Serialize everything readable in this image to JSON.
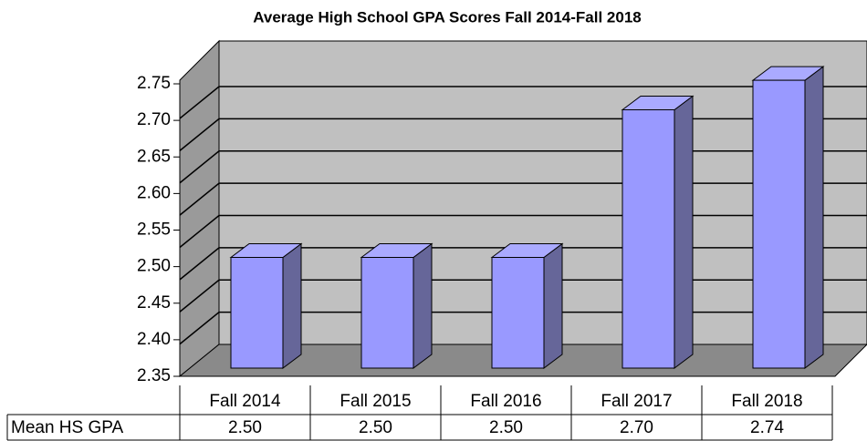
{
  "chart_data": {
    "type": "bar3d",
    "title": "Average High School GPA Scores Fall 2014-Fall 2018",
    "categories": [
      "Fall 2014",
      "Fall 2015",
      "Fall 2016",
      "Fall 2017",
      "Fall 2018"
    ],
    "series": [
      {
        "name": "Mean HS GPA",
        "color": "#9999ff",
        "values": [
          2.5,
          2.5,
          2.5,
          2.7,
          2.74
        ],
        "value_labels": [
          "2.50",
          "2.50",
          "2.50",
          "2.70",
          "2.74"
        ]
      }
    ],
    "ylim": [
      2.35,
      2.75
    ],
    "yticks": [
      2.35,
      {
        "value": 2.4,
        "label": "2.40"
      },
      2.45,
      {
        "value": 2.5,
        "label": "2.50"
      },
      2.55,
      {
        "value": 2.6,
        "label": "2.60"
      },
      2.65,
      {
        "value": 2.7,
        "label": "2.70"
      },
      2.75
    ],
    "grid": true,
    "data_table": true
  }
}
